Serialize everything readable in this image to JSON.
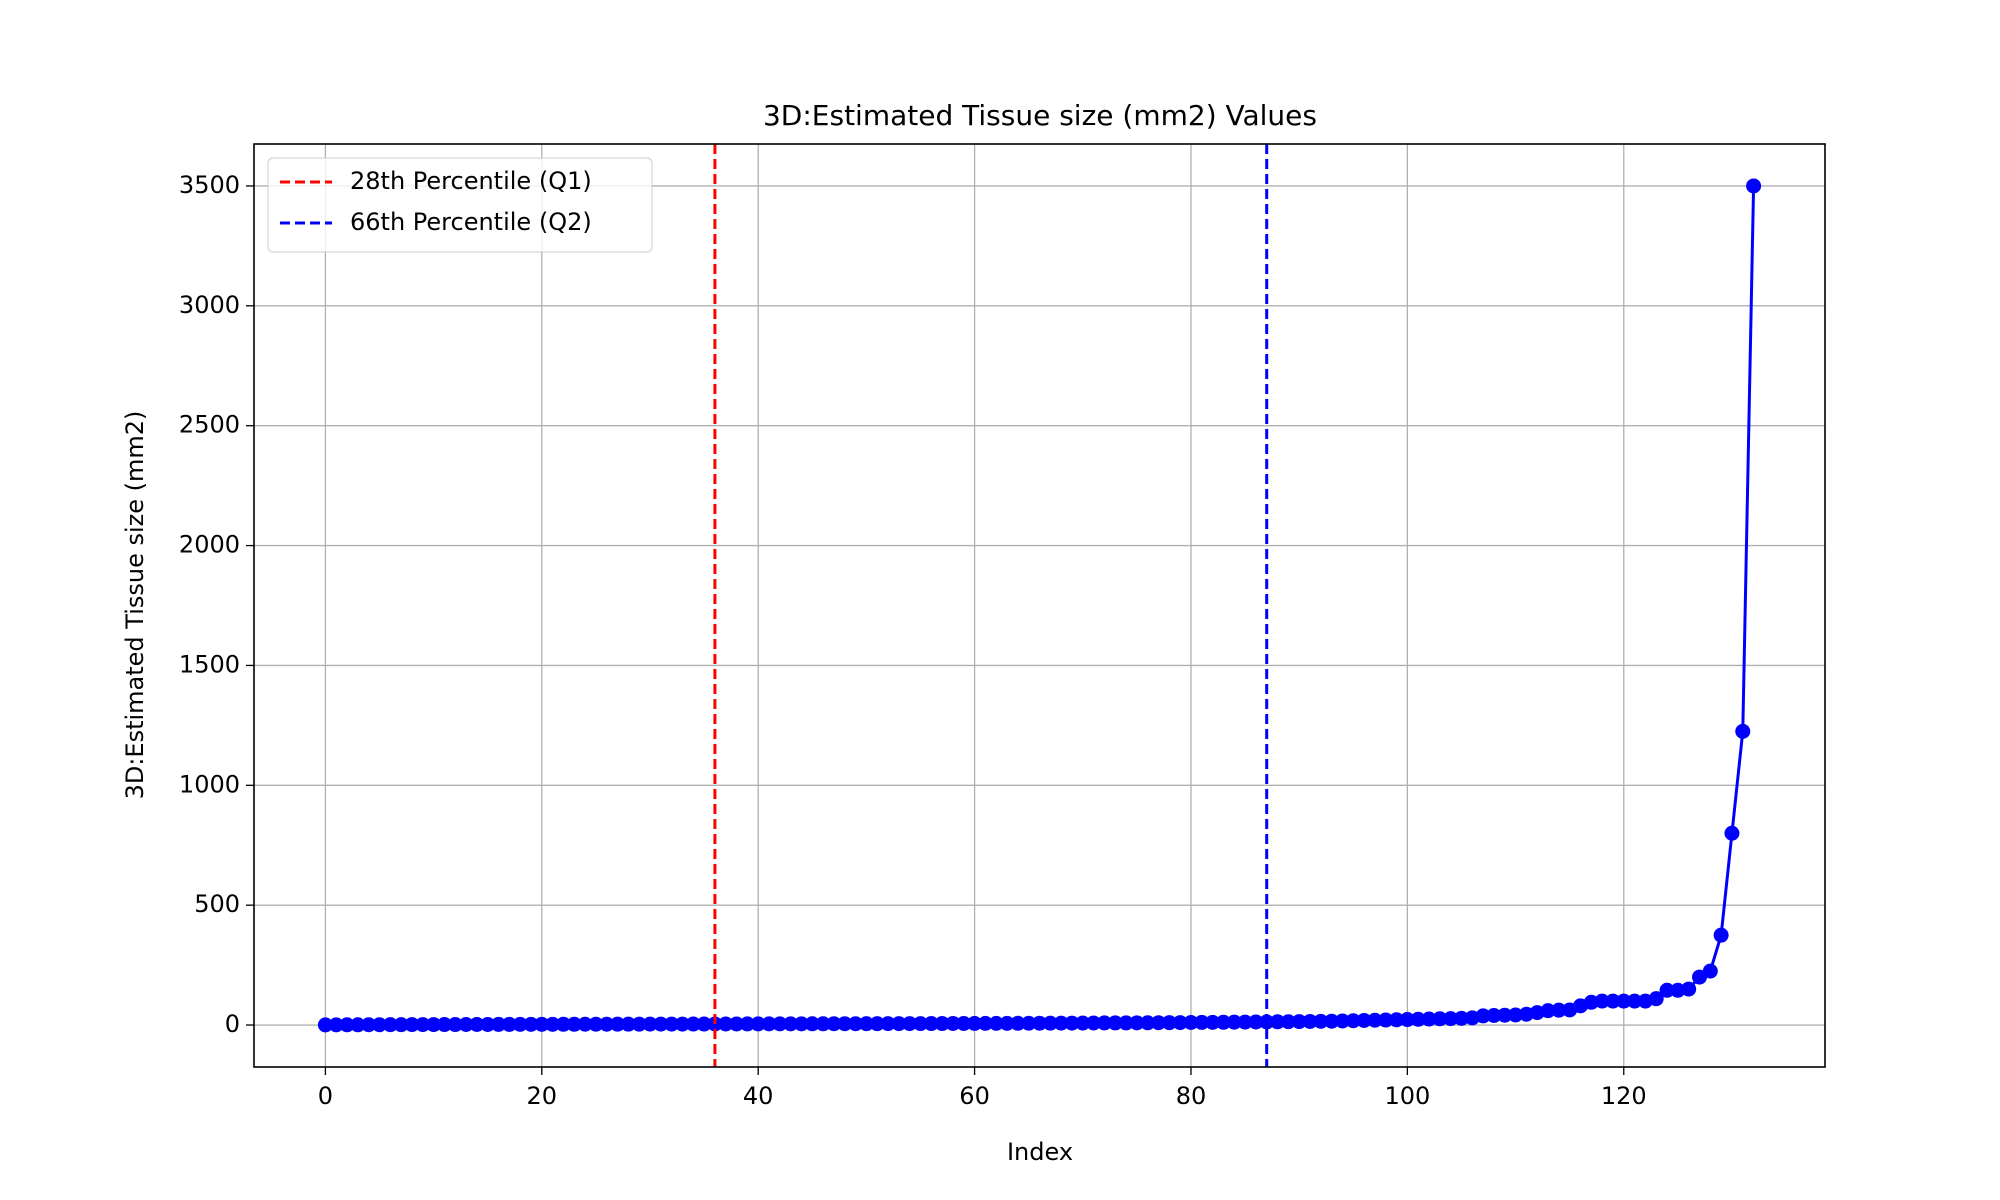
{
  "chart_data": {
    "type": "line",
    "title": "3D:Estimated Tissue size (mm2) Values",
    "xlabel": "Index",
    "ylabel": "3D:Estimated Tissue size (mm2)",
    "x": [
      0,
      1,
      2,
      3,
      4,
      5,
      6,
      7,
      8,
      9,
      10,
      11,
      12,
      13,
      14,
      15,
      16,
      17,
      18,
      19,
      20,
      21,
      22,
      23,
      24,
      25,
      26,
      27,
      28,
      29,
      30,
      31,
      32,
      33,
      34,
      35,
      36,
      37,
      38,
      39,
      40,
      41,
      42,
      43,
      44,
      45,
      46,
      47,
      48,
      49,
      50,
      51,
      52,
      53,
      54,
      55,
      56,
      57,
      58,
      59,
      60,
      61,
      62,
      63,
      64,
      65,
      66,
      67,
      68,
      69,
      70,
      71,
      72,
      73,
      74,
      75,
      76,
      77,
      78,
      79,
      80,
      81,
      82,
      83,
      84,
      85,
      86,
      87,
      88,
      89,
      90,
      91,
      92,
      93,
      94,
      95,
      96,
      97,
      98,
      99,
      100,
      101,
      102,
      103,
      104,
      105,
      106,
      107,
      108,
      109,
      110,
      111,
      112,
      113,
      114,
      115,
      116,
      117,
      118,
      119,
      120,
      121,
      122,
      123,
      124,
      125,
      126,
      127,
      128,
      129,
      130,
      131,
      132
    ],
    "values": [
      0.5,
      0.8,
      1,
      1,
      1.2,
      1.3,
      1.5,
      1.6,
      1.8,
      2,
      2,
      2.1,
      2.2,
      2.3,
      2.4,
      2.5,
      2.6,
      2.7,
      2.8,
      2.9,
      3,
      3,
      3.1,
      3.2,
      3.3,
      3.4,
      3.5,
      3.6,
      3.7,
      3.8,
      3.9,
      4,
      4,
      4.1,
      4.2,
      4.3,
      4.4,
      4.5,
      4.6,
      4.7,
      4.8,
      4.9,
      5,
      5,
      5.1,
      5.2,
      5.3,
      5.4,
      5.5,
      5.6,
      5.7,
      5.8,
      5.9,
      6,
      6,
      6.1,
      6.2,
      6.4,
      6.5,
      6.7,
      6.8,
      7,
      7,
      7.2,
      7.4,
      7.5,
      7.7,
      7.9,
      8,
      8.2,
      8.4,
      8.6,
      8.8,
      9,
      9,
      9.3,
      9.5,
      9.8,
      10,
      10.3,
      10.6,
      11,
      11.3,
      11.6,
      12,
      12.4,
      12.8,
      13,
      13.5,
      14,
      14.5,
      15,
      15.5,
      16,
      17,
      18,
      19,
      20,
      21,
      22,
      23,
      24,
      25,
      26,
      27,
      28,
      30,
      38,
      40,
      41,
      42,
      45,
      52,
      60,
      62,
      63,
      80,
      95,
      100,
      100,
      100,
      100,
      100,
      110,
      145,
      145,
      150,
      200,
      225,
      375,
      800,
      1225,
      3500
    ],
    "color": "#0000ff",
    "vlines": [
      {
        "x": 36,
        "label": "28th Percentile (Q1)",
        "color": "#ff0000"
      },
      {
        "x": 87,
        "label": "66th Percentile (Q2)",
        "color": "#0000ff"
      }
    ],
    "xlim": [
      -6.6,
      138.6
    ],
    "xticks": [
      0,
      20,
      40,
      60,
      80,
      100,
      120
    ],
    "ylim": [
      -175,
      3675
    ],
    "yticks": [
      0,
      500,
      1000,
      1500,
      2000,
      2500,
      3000,
      3500
    ],
    "grid": true,
    "legend": "upper left"
  }
}
